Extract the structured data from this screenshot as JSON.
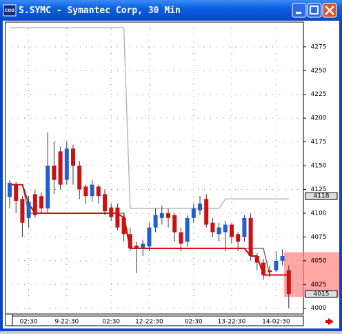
{
  "window": {
    "title": "S.SYMC - Symantec Corp, 30 Min",
    "icon": "CQG"
  },
  "chart_data": {
    "type": "candlestick",
    "open": [
      4117,
      4130,
      4115,
      4095,
      4120,
      4118,
      4105,
      4150,
      4165,
      4135,
      4168,
      4150,
      4128,
      4118,
      4128,
      4120,
      4106,
      4106,
      4095,
      4078,
      4066,
      4063,
      4065,
      4085,
      4095,
      4100,
      4098,
      4080,
      4070,
      4095,
      4103,
      4115,
      4090,
      4078,
      4080,
      4088,
      4078,
      4075,
      4095,
      4055,
      4048,
      4040,
      4040,
      4050,
      4040
    ],
    "high": [
      4135,
      4133,
      4118,
      4118,
      4125,
      4122,
      4185,
      4175,
      4170,
      4175,
      4172,
      4155,
      4130,
      4135,
      4130,
      4125,
      4110,
      4110,
      4100,
      4085,
      4070,
      4072,
      4090,
      4105,
      4108,
      4105,
      4100,
      4085,
      4098,
      4110,
      4118,
      4120,
      4095,
      4090,
      4092,
      4090,
      4080,
      4098,
      4100,
      4058,
      4052,
      4045,
      4060,
      4062,
      4045
    ],
    "low": [
      4105,
      4100,
      4075,
      4085,
      4095,
      4100,
      4100,
      4120,
      4125,
      4130,
      4130,
      4115,
      4110,
      4112,
      4110,
      4098,
      4092,
      4082,
      4070,
      4060,
      4037,
      4055,
      4060,
      4080,
      4088,
      4085,
      4070,
      4060,
      4065,
      4090,
      4098,
      4085,
      4075,
      4070,
      4060,
      4068,
      4060,
      4070,
      4050,
      4040,
      4030,
      4033,
      4038,
      4045,
      4000
    ],
    "close": [
      4132,
      4113,
      4090,
      4112,
      4098,
      4105,
      4150,
      4135,
      4130,
      4168,
      4150,
      4125,
      4118,
      4130,
      4118,
      4102,
      4096,
      4085,
      4078,
      4063,
      4063,
      4068,
      4085,
      4098,
      4100,
      4095,
      4080,
      4068,
      4095,
      4105,
      4110,
      4088,
      4080,
      4085,
      4088,
      4075,
      4070,
      4095,
      4055,
      4048,
      4035,
      4038,
      4050,
      4055,
      4015
    ],
    "up_color": "#1f5fd0",
    "down_color": "#cc1111",
    "overlays": [
      {
        "color": "#b8b8b8",
        "values": [
          4295,
          4295,
          4295,
          4295,
          4295,
          4295,
          4295,
          4295,
          4295,
          4295,
          4295,
          4295,
          4295,
          4295,
          4295,
          4295,
          4295,
          4295,
          4295,
          4105,
          4105,
          4105,
          4105,
          4105,
          4105,
          4105,
          4105,
          4105,
          4105,
          4105,
          4105,
          4105,
          4105,
          4105,
          4115,
          4115,
          4115,
          4115,
          4115,
          4115,
          4115,
          4115,
          4115,
          4115,
          4115
        ]
      },
      {
        "color": "#707070",
        "values": [
          4130,
          4130,
          4130,
          4100,
          4100,
          4100,
          4100,
          4100,
          4100,
          4100,
          4100,
          4100,
          4100,
          4100,
          4100,
          4100,
          4100,
          4100,
          4100,
          4063,
          4063,
          4063,
          4063,
          4063,
          4063,
          4063,
          4063,
          4063,
          4063,
          4063,
          4063,
          4063,
          4063,
          4063,
          4063,
          4063,
          4063,
          4063,
          4063,
          4063,
          4063,
          4035,
          4035,
          4035,
          4035
        ]
      },
      {
        "color": "#dd0000",
        "values": [
          4130,
          4130,
          4130,
          4110,
          4100,
          4100,
          4100,
          4100,
          4100,
          4100,
          4100,
          4100,
          4100,
          4100,
          4100,
          4100,
          4100,
          4100,
          4095,
          4063,
          4063,
          4063,
          4063,
          4063,
          4063,
          4063,
          4063,
          4063,
          4063,
          4063,
          4063,
          4063,
          4063,
          4063,
          4063,
          4063,
          4063,
          4063,
          4055,
          4055,
          4035,
          4035,
          4035,
          4035,
          4035
        ]
      }
    ],
    "ylim": [
      3994,
      4301
    ],
    "yticks": [
      4000,
      4025,
      4050,
      4075,
      4100,
      4125,
      4150,
      4175,
      4200,
      4225,
      4250,
      4275
    ],
    "xticks": [
      {
        "value": 3,
        "label": "02:30"
      },
      {
        "value": 9,
        "label": "9-22:30"
      },
      {
        "value": 16,
        "label": "02:30"
      },
      {
        "value": 22,
        "label": "12-22:30"
      },
      {
        "value": 29,
        "label": "02:30"
      },
      {
        "value": 35,
        "label": "13-22:30"
      },
      {
        "value": 42,
        "label": "14-02:30"
      }
    ],
    "price_labels": [
      4118,
      4015
    ],
    "highlight": [
      4012,
      4059
    ],
    "grid": true
  }
}
